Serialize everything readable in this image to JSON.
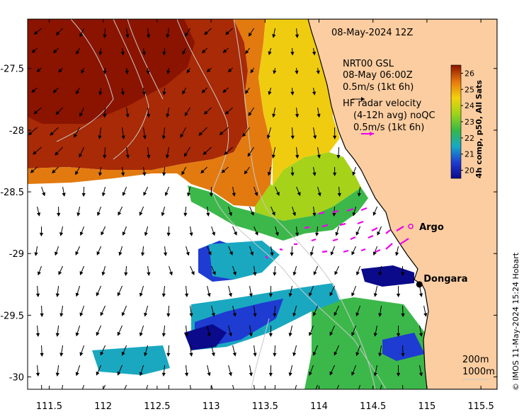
{
  "title": "08-May-2024 12Z",
  "model_legend": {
    "line1": "NRT00 GSL",
    "line2": "08-May 06:00Z",
    "line3": "0.5m/s (1kt 6h)"
  },
  "radar_legend": {
    "line1": "HF radar velocity",
    "line2": "(4-12h avg) noQC",
    "line3": "0.5m/s (1kt 6h)"
  },
  "colorbar": {
    "label": "4h comp, p50, All Sats",
    "ticks": [
      "20",
      "21",
      "22",
      "23",
      "24",
      "25",
      "26"
    ],
    "range": [
      19.5,
      26.5
    ]
  },
  "places": [
    {
      "name": "Argo",
      "lon": 114.85,
      "lat": -28.78,
      "marker": "open-circle",
      "color": "#e000e0"
    },
    {
      "name": "Dongara",
      "lon": 114.93,
      "lat": -29.25,
      "marker": "dot",
      "color": "#000000"
    }
  ],
  "isobaths": {
    "line1": "200m",
    "line2": "1000m"
  },
  "credit": "© IMOS 11-May-2024 15:24 Hobart",
  "axes": {
    "x_ticks": [
      "111.5",
      "112",
      "112.5",
      "113",
      "113.5",
      "114",
      "114.5",
      "115",
      "115.5"
    ],
    "y_ticks": [
      "-27.5",
      "-28",
      "-28.5",
      "-29",
      "-29.5",
      "-30"
    ],
    "xlim": [
      111.3,
      115.65
    ],
    "ylim": [
      -30.1,
      -27.1
    ]
  },
  "colors": {
    "land": "#fbcda0",
    "nodata": "#ffffff",
    "radar": "#ee00ee",
    "coast": "#000000",
    "contour": "#c8c8c8"
  }
}
